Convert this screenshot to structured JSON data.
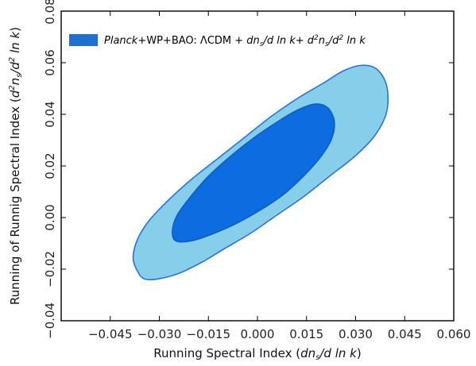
{
  "chart_data": {
    "type": "contour",
    "xlabel": "Running Spectral Index (dn_s / d ln k)",
    "ylabel": "Running of Runnig Spectral Index (d^2 n_s / d^2 ln k)",
    "xlim": [
      -0.06,
      0.06
    ],
    "ylim": [
      -0.04,
      0.08
    ],
    "x_ticks": [
      -0.045,
      -0.03,
      -0.015,
      0.0,
      0.015,
      0.03,
      0.045,
      0.06
    ],
    "x_tick_labels": [
      "−0.045",
      "−0.030",
      "−0.015",
      "0.000",
      "0.015",
      "0.030",
      "0.045",
      "0.060"
    ],
    "y_ticks": [
      -0.04,
      -0.02,
      0.0,
      0.02,
      0.04,
      0.06,
      0.08
    ],
    "y_tick_labels": [
      "−0.04",
      "−0.02",
      "0.00",
      "0.02",
      "0.04",
      "0.06",
      "0.08"
    ],
    "grid": false,
    "legend": {
      "placement": "top-left",
      "entries": [
        {
          "label": "Planck+WP+BAO: ΛCDM + dn_s/d ln k+ d²n_s/d²ln k",
          "color": "#1f6fd1"
        }
      ]
    },
    "series": [
      {
        "name": "Planck+WP+BAO: ΛCDM + dn_s/d ln k+ d²n_s/d²ln k",
        "level": "95%",
        "color": "#87ceeb",
        "edge_color": "#2a73d6",
        "contour": [
          [
            -0.034,
            -0.024
          ],
          [
            -0.037,
            -0.02
          ],
          [
            -0.038,
            -0.015
          ],
          [
            -0.0365,
            -0.008
          ],
          [
            -0.033,
            -0.001
          ],
          [
            -0.027,
            0.007
          ],
          [
            -0.02,
            0.015
          ],
          [
            -0.012,
            0.023
          ],
          [
            -0.004,
            0.031
          ],
          [
            0.004,
            0.039
          ],
          [
            0.012,
            0.046
          ],
          [
            0.02,
            0.052
          ],
          [
            0.0265,
            0.057
          ],
          [
            0.032,
            0.059
          ],
          [
            0.0365,
            0.0575
          ],
          [
            0.0395,
            0.051
          ],
          [
            0.0395,
            0.041
          ],
          [
            0.036,
            0.032
          ],
          [
            0.03,
            0.024
          ],
          [
            0.022,
            0.016
          ],
          [
            0.014,
            0.008
          ],
          [
            0.006,
            0.001
          ],
          [
            -0.002,
            -0.006
          ],
          [
            -0.01,
            -0.012
          ],
          [
            -0.018,
            -0.018
          ],
          [
            -0.026,
            -0.0225
          ]
        ]
      },
      {
        "name": "Planck+WP+BAO: ΛCDM + dn_s/d ln k+ d²n_s/d²ln k",
        "level": "68%",
        "color": "#0c6ce0",
        "edge_color": "#0a5fc4",
        "contour": [
          [
            -0.025,
            -0.009
          ],
          [
            -0.026,
            -0.005
          ],
          [
            -0.0245,
            0.001
          ],
          [
            -0.0205,
            0.008
          ],
          [
            -0.015,
            0.016
          ],
          [
            -0.008,
            0.024
          ],
          [
            -0.001,
            0.031
          ],
          [
            0.006,
            0.037
          ],
          [
            0.012,
            0.0415
          ],
          [
            0.0175,
            0.044
          ],
          [
            0.0215,
            0.0425
          ],
          [
            0.0235,
            0.037
          ],
          [
            0.0225,
            0.03
          ],
          [
            0.019,
            0.023
          ],
          [
            0.014,
            0.016
          ],
          [
            0.008,
            0.009
          ],
          [
            0.001,
            0.003
          ],
          [
            -0.006,
            -0.002
          ],
          [
            -0.013,
            -0.006
          ],
          [
            -0.02,
            -0.009
          ]
        ]
      }
    ]
  },
  "legend_label": {
    "italic_prefix": "Planck",
    "rest": "+WP+BAO: ΛCDM + ",
    "running_term": "dn",
    "running_sub": "s",
    "running_tail": "/d ln k+ d",
    "running2_sup": "2",
    "running2_n": "n",
    "running2_sub": "s",
    "running2_mid": "/d",
    "running2_sup2": "2",
    "running2_tail": " ln k"
  },
  "axis_labels": {
    "x_prefix": "Running Spectral Index (",
    "x_d": "dn",
    "x_sub": "s",
    "x_tail": "/d ln k",
    "x_close": ")",
    "y_prefix": "Running of Runnig Spectral Index (",
    "y_d": "d",
    "y_sup": "2",
    "y_n": "n",
    "y_sub": "s",
    "y_mid": "/d",
    "y_sup2": "2",
    "y_tail": " ln k",
    "y_close": ")"
  }
}
